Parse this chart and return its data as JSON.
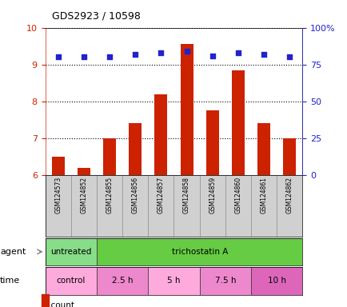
{
  "title": "GDS2923 / 10598",
  "samples": [
    "GSM124573",
    "GSM124852",
    "GSM124855",
    "GSM124856",
    "GSM124857",
    "GSM124858",
    "GSM124859",
    "GSM124860",
    "GSM124861",
    "GSM124862"
  ],
  "bar_values": [
    6.5,
    6.2,
    7.0,
    7.4,
    8.2,
    9.55,
    7.75,
    8.85,
    7.4,
    7.0
  ],
  "dot_values": [
    80,
    80,
    80,
    82,
    83,
    84,
    81,
    83,
    82,
    80
  ],
  "ylim_left": [
    6,
    10
  ],
  "ylim_right": [
    0,
    100
  ],
  "yticks_left": [
    6,
    7,
    8,
    9,
    10
  ],
  "yticks_right": [
    0,
    25,
    50,
    75,
    100
  ],
  "bar_color": "#cc2200",
  "dot_color": "#2222cc",
  "agent_row": [
    {
      "label": "untreated",
      "start": 0,
      "end": 2,
      "color": "#88dd88"
    },
    {
      "label": "trichostatin A",
      "start": 2,
      "end": 10,
      "color": "#66cc44"
    }
  ],
  "time_row": [
    {
      "label": "control",
      "start": 0,
      "end": 2,
      "color": "#ffaadd"
    },
    {
      "label": "2.5 h",
      "start": 2,
      "end": 4,
      "color": "#ee88cc"
    },
    {
      "label": "5 h",
      "start": 4,
      "end": 6,
      "color": "#ffaadd"
    },
    {
      "label": "7.5 h",
      "start": 6,
      "end": 8,
      "color": "#ee88cc"
    },
    {
      "label": "10 h",
      "start": 8,
      "end": 10,
      "color": "#dd66bb"
    }
  ],
  "legend_count_color": "#cc2200",
  "legend_dot_color": "#2222cc",
  "bg_color": "#ffffff",
  "tick_color_left": "#cc2200",
  "tick_color_right": "#2222cc"
}
